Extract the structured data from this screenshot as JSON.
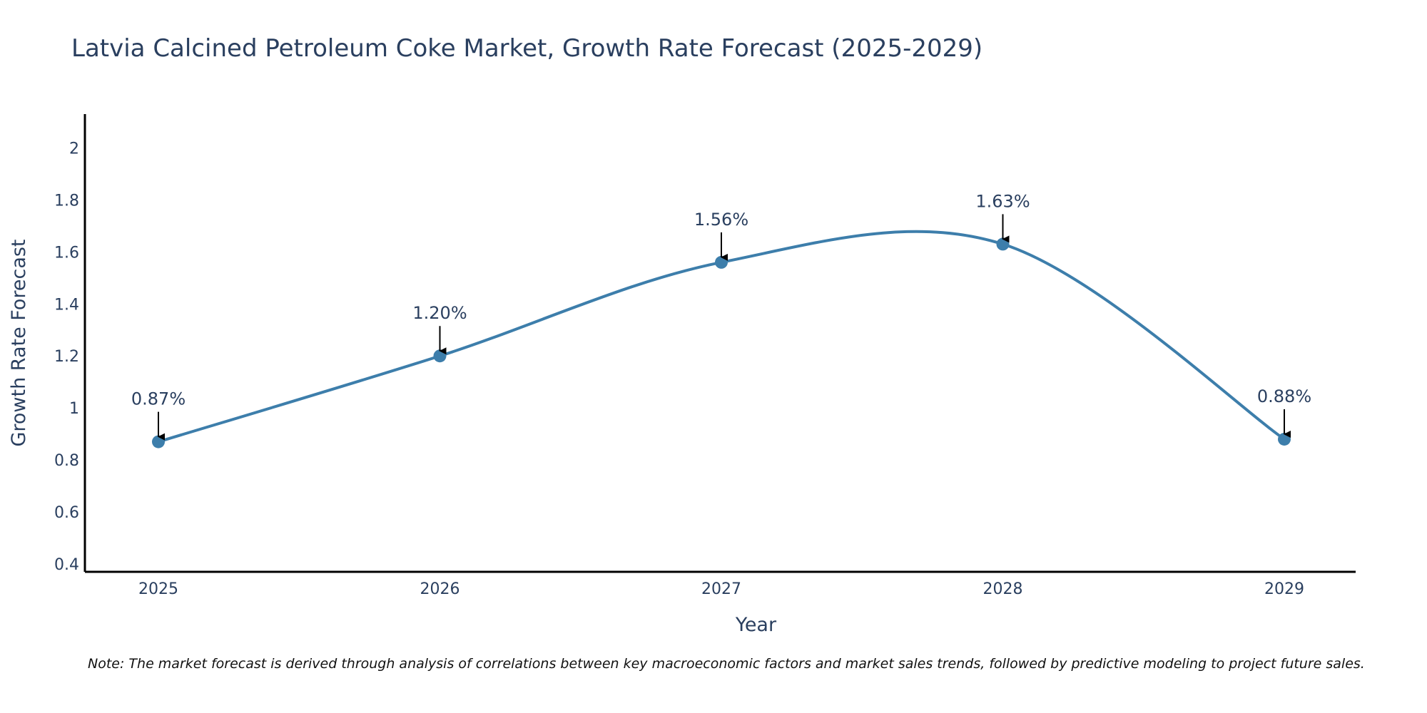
{
  "chart_data": {
    "type": "line",
    "title": "Latvia Calcined Petroleum Coke Market, Growth Rate Forecast (2025-2029)",
    "xlabel": "Year",
    "ylabel": "Growth Rate Forecast",
    "categories": [
      "2025",
      "2026",
      "2027",
      "2028",
      "2029"
    ],
    "series": [
      {
        "name": "Growth Rate Forecast",
        "values": [
          0.87,
          1.2,
          1.56,
          1.63,
          0.88
        ],
        "labels": [
          "0.87%",
          "1.20%",
          "1.56%",
          "1.63%",
          "0.88%"
        ]
      }
    ],
    "yticks": [
      "0.4",
      "0.6",
      "0.8",
      "1",
      "1.2",
      "1.4",
      "1.6",
      "1.8",
      "2"
    ],
    "ylim": [
      0.37,
      2.13
    ],
    "grid": false,
    "line_color": "#3d7eab",
    "marker_color": "#3d7eab",
    "arrow_color": "#000000",
    "note": "Note: The market forecast is derived through analysis of correlations between key macroeconomic factors and market sales trends, followed by predictive modeling to project future sales."
  }
}
